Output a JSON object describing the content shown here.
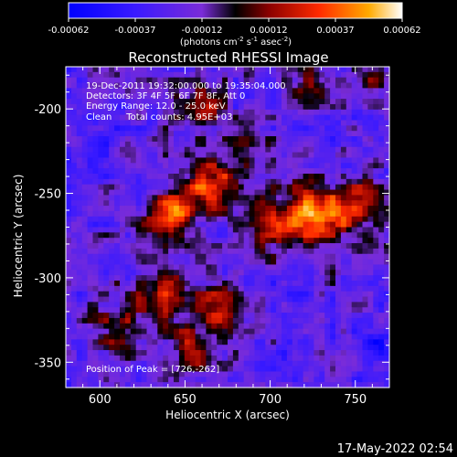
{
  "chart_data": {
    "type": "heatmap",
    "title": "Reconstructed RHESSI Image",
    "xlabel": "Heliocentric X (arcsec)",
    "ylabel": "Heliocentric Y (arcsec)",
    "xlim": [
      580,
      770
    ],
    "ylim": [
      -365,
      -175
    ],
    "x_ticks": [
      600,
      650,
      700,
      750
    ],
    "y_ticks": [
      -200,
      -250,
      -300,
      -350
    ],
    "colorbar": {
      "min": -0.00062,
      "max": 0.00062,
      "ticks": [
        "-0.00062",
        "-0.00037",
        "-0.00012",
        "0.00012",
        "0.00037",
        "0.00062"
      ],
      "units_label": "(photons cm",
      "units_sup1": "-2",
      "units_mid": " s",
      "units_sup2": "-1",
      "units_tail": " asec",
      "units_sup3": "-2",
      "units_end": ")"
    },
    "sources": [
      {
        "x": 642,
        "y": -263,
        "sigma": 10,
        "amp": 0.00062
      },
      {
        "x": 665,
        "y": -245,
        "sigma": 12,
        "amp": 0.00052
      },
      {
        "x": 726,
        "y": -262,
        "sigma": 12,
        "amp": 0.00062
      },
      {
        "x": 752,
        "y": -258,
        "sigma": 11,
        "amp": 0.00045
      },
      {
        "x": 700,
        "y": -270,
        "sigma": 12,
        "amp": 0.00035
      },
      {
        "x": 640,
        "y": -308,
        "sigma": 12,
        "amp": 0.0004
      },
      {
        "x": 670,
        "y": -320,
        "sigma": 11,
        "amp": 0.00036
      },
      {
        "x": 610,
        "y": -330,
        "sigma": 12,
        "amp": 0.00028
      },
      {
        "x": 655,
        "y": -345,
        "sigma": 10,
        "amp": 0.00032
      },
      {
        "x": 660,
        "y": -198,
        "sigma": 10,
        "amp": 0.00033
      },
      {
        "x": 725,
        "y": -185,
        "sigma": 8,
        "amp": 0.0003
      },
      {
        "x": 760,
        "y": -183,
        "sigma": 6,
        "amp": 0.00034
      },
      {
        "x": 690,
        "y": -225,
        "sigma": 9,
        "amp": 0.0002
      },
      {
        "x": 598,
        "y": -228,
        "sigma": 10,
        "amp": -0.00022
      },
      {
        "x": 760,
        "y": -340,
        "sigma": 12,
        "amp": -0.0002
      },
      {
        "x": 715,
        "y": -310,
        "sigma": 10,
        "amp": -0.00016
      }
    ]
  },
  "annotations": {
    "line1": "19-Dec-2011 19:32:00.000 to 19:35:04.000",
    "line2": "Detectors: 3F 4F 5F 6F 7F 8F, Att 0",
    "line3": "Energy Range: 12.0 - 25.0 keV",
    "line4": "Clean     Total counts: 4.95E+03",
    "peak": "Position of Peak = [726,-262]"
  },
  "timestamp": "17-May-2022 02:54"
}
